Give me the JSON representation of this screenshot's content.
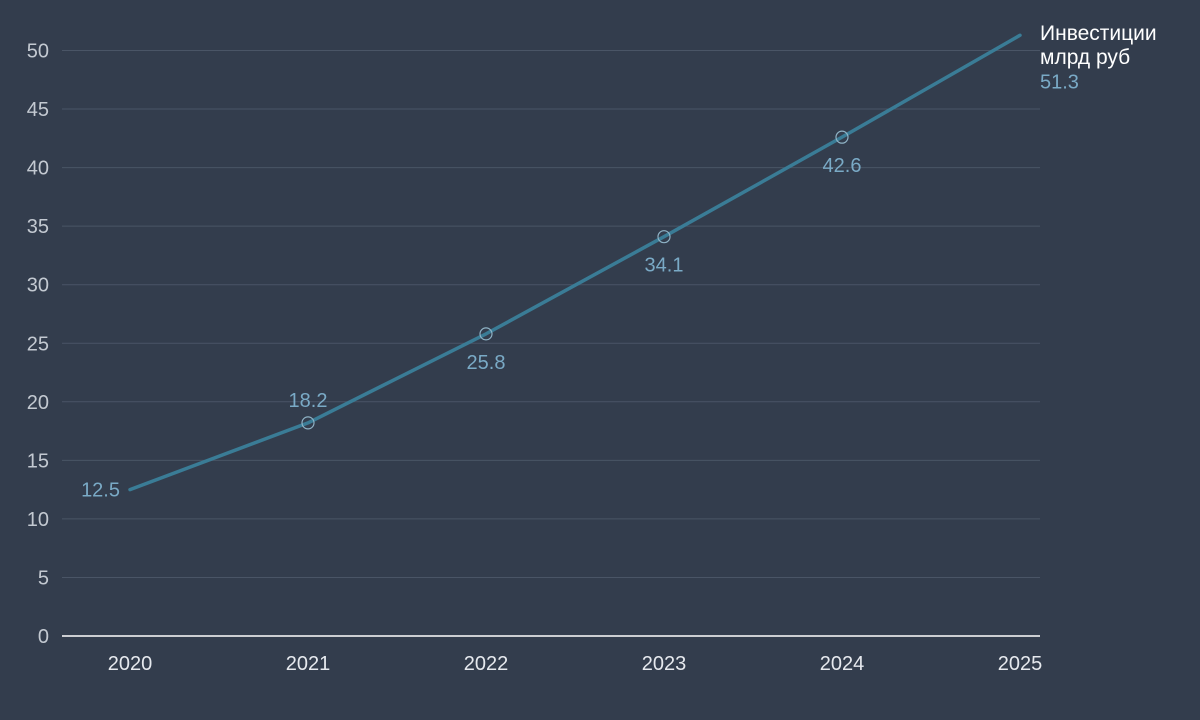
{
  "chart_data": {
    "type": "line",
    "x": [
      "2020",
      "2021",
      "2022",
      "2023",
      "2024",
      "2025"
    ],
    "series": [
      {
        "name": "Инвестиции млрд руб",
        "name_lines": [
          "Инвестиции",
          "млрд руб"
        ],
        "values": [
          12.5,
          18.2,
          25.8,
          34.1,
          42.6,
          51.3
        ],
        "color": "#3a7c96"
      }
    ],
    "ylim": [
      0,
      50
    ],
    "yticks": [
      "0",
      "5",
      "10",
      "15",
      "20",
      "25",
      "30",
      "35",
      "40",
      "45",
      "50"
    ],
    "data_labels": [
      "12.5",
      "18.2",
      "25.8",
      "34.1",
      "42.6",
      "51.3"
    ],
    "grid": true,
    "background": "#333d4d",
    "legend": "end-of-line label"
  }
}
